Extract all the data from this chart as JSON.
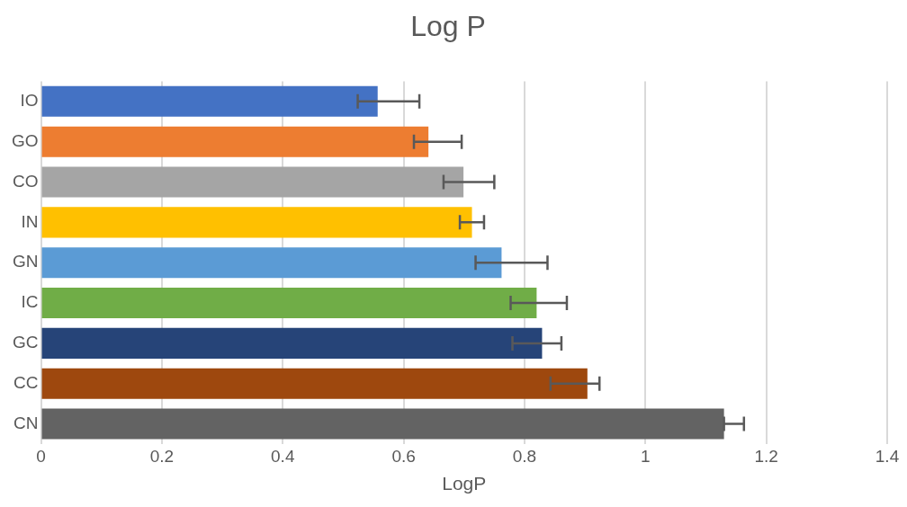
{
  "chart_data": {
    "type": "bar",
    "orientation": "horizontal",
    "title": "Log P",
    "xlabel": "LogP",
    "categories": [
      "IO",
      "GO",
      "CO",
      "IN",
      "GN",
      "IC",
      "GC",
      "CC",
      "CN"
    ],
    "values": [
      0.557,
      0.641,
      0.699,
      0.713,
      0.762,
      0.82,
      0.829,
      0.904,
      1.13
    ],
    "colors": [
      "#4472c4",
      "#ed7d31",
      "#a5a5a5",
      "#ffc000",
      "#5b9bd5",
      "#70ad47",
      "#264478",
      "#9e480e",
      "#636363"
    ],
    "errors": [
      [
        0.524,
        0.626
      ],
      [
        0.617,
        0.696
      ],
      [
        0.666,
        0.75
      ],
      [
        0.693,
        0.733
      ],
      [
        0.719,
        0.838
      ],
      [
        0.777,
        0.87
      ],
      [
        0.78,
        0.861
      ],
      [
        0.843,
        0.924
      ],
      [
        1.13,
        1.163
      ]
    ],
    "xlim": [
      0,
      1.4
    ],
    "xticks": [
      0,
      0.2,
      0.4,
      0.6,
      0.8,
      1,
      1.2,
      1.4
    ],
    "grid": "x"
  }
}
